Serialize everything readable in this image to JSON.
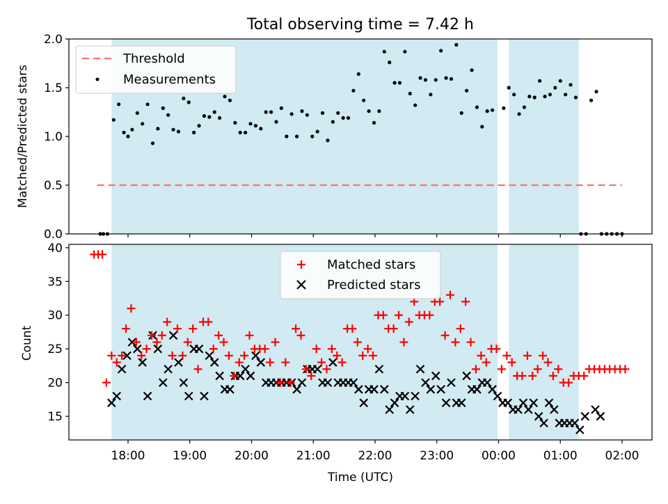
{
  "figure_title": "Total observing time = 7.42 h",
  "colors": {
    "shade": "#add8e6",
    "threshold": "#ff6f6f",
    "measurement": "#000000",
    "matched": "#ff0000",
    "predicted": "#000000"
  },
  "chart_data": [
    {
      "type": "scatter",
      "ylabel": "Matched/Predicted stars",
      "ylim": [
        0,
        2.0
      ],
      "yticks": [
        0.0,
        0.5,
        1.0,
        1.5,
        2.0
      ],
      "ytick_labels": [
        "0.0",
        "0.5",
        "1.0",
        "1.5",
        "2.0"
      ],
      "legend": {
        "position": "upper-left",
        "entries": [
          "Threshold",
          "Measurements"
        ]
      },
      "threshold": {
        "name": "Threshold",
        "y": 0.5,
        "x_start": "17:30",
        "x_end": "02:00"
      },
      "shaded_intervals": [
        [
          "17:44",
          "23:59"
        ],
        [
          "00:10",
          "01:18"
        ]
      ],
      "series": [
        {
          "name": "Measurements",
          "x": [
            "17:33",
            "17:36",
            "17:40",
            "17:46",
            "17:51",
            "17:56",
            "18:00",
            "18:04",
            "18:09",
            "18:14",
            "18:19",
            "18:24",
            "18:29",
            "18:34",
            "18:39",
            "18:44",
            "18:49",
            "18:54",
            "18:59",
            "19:04",
            "19:09",
            "19:14",
            "19:19",
            "19:24",
            "19:29",
            "19:34",
            "19:39",
            "19:44",
            "19:49",
            "19:54",
            "19:59",
            "20:04",
            "20:09",
            "20:14",
            "20:19",
            "20:24",
            "20:29",
            "20:34",
            "20:39",
            "20:44",
            "20:49",
            "20:54",
            "20:59",
            "21:04",
            "21:09",
            "21:14",
            "21:19",
            "21:24",
            "21:29",
            "21:34",
            "21:39",
            "21:44",
            "21:49",
            "21:54",
            "21:59",
            "22:04",
            "22:09",
            "22:14",
            "22:19",
            "22:24",
            "22:29",
            "22:34",
            "22:39",
            "22:44",
            "22:49",
            "22:54",
            "22:59",
            "23:04",
            "23:09",
            "23:14",
            "23:19",
            "23:24",
            "23:29",
            "23:34",
            "23:39",
            "23:44",
            "23:49",
            "23:54",
            "00:05",
            "00:10",
            "00:15",
            "00:20",
            "00:25",
            "00:30",
            "00:35",
            "00:40",
            "00:45",
            "00:50",
            "00:55",
            "01:00",
            "01:05",
            "01:10",
            "01:15",
            "01:20",
            "01:25",
            "01:30",
            "01:35",
            "01:40",
            "01:45",
            "01:50",
            "01:55",
            "02:00"
          ],
          "y": [
            0.0,
            0.0,
            0.0,
            1.17,
            1.33,
            1.04,
            1.0,
            1.07,
            1.24,
            1.13,
            1.33,
            0.93,
            1.08,
            1.29,
            1.22,
            1.07,
            1.05,
            1.39,
            1.35,
            1.04,
            1.11,
            1.21,
            1.2,
            1.25,
            1.19,
            1.41,
            1.37,
            1.14,
            1.04,
            1.04,
            1.13,
            1.11,
            1.08,
            1.25,
            1.25,
            1.15,
            1.29,
            1.0,
            1.23,
            1.0,
            1.26,
            1.22,
            1.0,
            1.05,
            1.24,
            0.96,
            1.15,
            1.24,
            1.19,
            1.19,
            1.47,
            1.64,
            1.37,
            1.26,
            1.14,
            1.26,
            1.87,
            1.76,
            1.55,
            1.55,
            1.87,
            1.44,
            1.32,
            1.6,
            1.58,
            1.43,
            1.58,
            1.88,
            1.6,
            1.59,
            1.94,
            1.24,
            1.47,
            1.68,
            1.3,
            1.1,
            1.26,
            1.27,
            1.29,
            1.5,
            1.43,
            1.23,
            1.3,
            1.41,
            1.4,
            1.57,
            1.41,
            1.43,
            1.5,
            1.57,
            1.43,
            1.53,
            1.4,
            0.0,
            0.0,
            1.37,
            1.46,
            0.0,
            0.0,
            0.0,
            0.0,
            0.0
          ]
        }
      ]
    },
    {
      "type": "scatter",
      "ylabel": "Count",
      "xlabel": "Time (UTC)",
      "ylim": [
        11.5,
        40.5
      ],
      "yticks": [
        15,
        20,
        25,
        30,
        35,
        40
      ],
      "ytick_labels": [
        "15",
        "20",
        "25",
        "30",
        "35",
        "40"
      ],
      "xticks": [
        "18:00",
        "19:00",
        "20:00",
        "21:00",
        "22:00",
        "23:00",
        "00:00",
        "01:00",
        "02:00"
      ],
      "legend": {
        "position": "upper-center",
        "entries": [
          "Matched stars",
          "Predicted stars"
        ]
      },
      "shaded_intervals": [
        [
          "17:44",
          "23:59"
        ],
        [
          "00:10",
          "01:18"
        ]
      ],
      "series": [
        {
          "name": "Matched stars",
          "x": [
            "17:27",
            "17:31",
            "17:35",
            "17:39",
            "17:44",
            "17:49",
            "17:54",
            "17:58",
            "18:03",
            "18:08",
            "18:13",
            "18:18",
            "18:23",
            "18:28",
            "18:33",
            "18:38",
            "18:43",
            "18:48",
            "18:53",
            "18:58",
            "19:03",
            "19:08",
            "19:13",
            "19:18",
            "19:23",
            "19:28",
            "19:33",
            "19:38",
            "19:43",
            "19:48",
            "19:53",
            "19:58",
            "20:03",
            "20:08",
            "20:13",
            "20:18",
            "20:23",
            "20:28",
            "20:33",
            "20:38",
            "20:43",
            "20:48",
            "20:53",
            "20:58",
            "21:03",
            "21:08",
            "21:13",
            "21:18",
            "21:23",
            "21:28",
            "21:33",
            "21:38",
            "21:43",
            "21:48",
            "21:53",
            "21:58",
            "22:03",
            "22:08",
            "22:13",
            "22:18",
            "22:23",
            "22:28",
            "22:33",
            "22:38",
            "22:43",
            "22:48",
            "22:53",
            "22:58",
            "23:03",
            "23:08",
            "23:13",
            "23:18",
            "23:23",
            "23:28",
            "23:33",
            "23:38",
            "23:43",
            "23:48",
            "23:53",
            "23:58",
            "00:03",
            "00:08",
            "00:13",
            "00:18",
            "00:23",
            "00:28",
            "00:33",
            "00:38",
            "00:43",
            "00:48",
            "00:53",
            "00:58",
            "01:03",
            "01:08",
            "01:13",
            "01:18",
            "01:23",
            "01:28",
            "01:33",
            "01:38",
            "01:43",
            "01:48",
            "01:53",
            "01:58",
            "02:03"
          ],
          "y": [
            39,
            39,
            39,
            20,
            24,
            23,
            24,
            28,
            31,
            26,
            24,
            25,
            27,
            26,
            27,
            29,
            24,
            28,
            24,
            26,
            28,
            22,
            29,
            29,
            25,
            27,
            26,
            24,
            21,
            23,
            24,
            27,
            25,
            25,
            25,
            23,
            26,
            20,
            23,
            20,
            28,
            27,
            22,
            21,
            25,
            23,
            22,
            25,
            24,
            23,
            28,
            28,
            26,
            24,
            25,
            24,
            30,
            30,
            28,
            28,
            30,
            26,
            29,
            32,
            30,
            30,
            30,
            32,
            32,
            27,
            33,
            26,
            28,
            32,
            26,
            22,
            24,
            23,
            25,
            25,
            22,
            24,
            23,
            21,
            21,
            24,
            21,
            22,
            24,
            23,
            21,
            22,
            20,
            20,
            21,
            21,
            21,
            22,
            22,
            22,
            22,
            22,
            22,
            22,
            22
          ],
          "x_count_note": ""
        },
        {
          "name": "Predicted stars",
          "x": [
            "17:44",
            "17:49",
            "17:54",
            "17:59",
            "18:04",
            "18:09",
            "18:14",
            "18:19",
            "18:24",
            "18:29",
            "18:34",
            "18:39",
            "18:44",
            "18:49",
            "18:54",
            "18:59",
            "19:04",
            "19:09",
            "19:14",
            "19:19",
            "19:24",
            "19:29",
            "19:34",
            "19:39",
            "19:44",
            "19:49",
            "19:54",
            "19:59",
            "20:04",
            "20:09",
            "20:14",
            "20:19",
            "20:24",
            "20:29",
            "20:34",
            "20:39",
            "20:44",
            "20:49",
            "20:54",
            "20:59",
            "21:04",
            "21:09",
            "21:14",
            "21:19",
            "21:24",
            "21:29",
            "21:34",
            "21:39",
            "21:44",
            "21:49",
            "21:54",
            "21:59",
            "22:04",
            "22:09",
            "22:14",
            "22:19",
            "22:24",
            "22:29",
            "22:34",
            "22:39",
            "22:44",
            "22:49",
            "22:54",
            "22:59",
            "23:04",
            "23:09",
            "23:14",
            "23:19",
            "23:24",
            "23:29",
            "23:34",
            "23:39",
            "23:44",
            "23:49",
            "23:54",
            "23:59",
            "00:04",
            "00:09",
            "00:14",
            "00:19",
            "00:24",
            "00:29",
            "00:34",
            "00:39",
            "00:44",
            "00:49",
            "00:54",
            "00:59",
            "01:04",
            "01:09",
            "01:14",
            "01:19",
            "01:24",
            "01:34",
            "01:39"
          ],
          "y": [
            17,
            18,
            22,
            24,
            26,
            25,
            23,
            18,
            27,
            25,
            20,
            22,
            27,
            23,
            20,
            18,
            25,
            25,
            18,
            24,
            23,
            21,
            19,
            19,
            21,
            21,
            22,
            21,
            24,
            23,
            20,
            20,
            20,
            20,
            20,
            20,
            19,
            20,
            22,
            22,
            22,
            20,
            20,
            23,
            20,
            20,
            20,
            20,
            19,
            17,
            19,
            19,
            22,
            19,
            16,
            17,
            18,
            18,
            16,
            18,
            22,
            20,
            19,
            21,
            19,
            17,
            20,
            17,
            17,
            21,
            19,
            19,
            20,
            20,
            19,
            18,
            17,
            17,
            16,
            16,
            17,
            16,
            17,
            15,
            14,
            17,
            16,
            14,
            14,
            14,
            14,
            13,
            15,
            16,
            15
          ]
        }
      ]
    }
  ]
}
